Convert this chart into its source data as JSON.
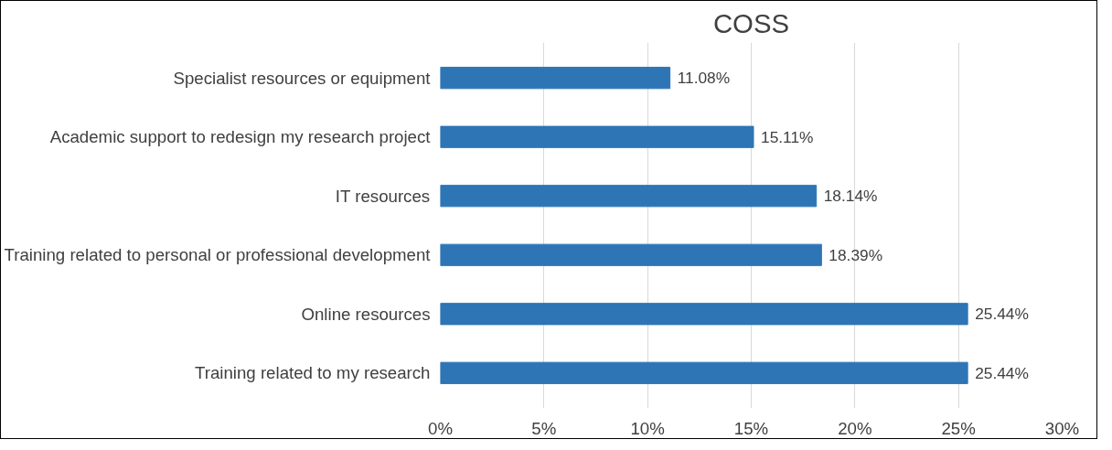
{
  "chart_data": {
    "type": "bar",
    "orientation": "horizontal",
    "title": "COSS",
    "categories": [
      "Specialist resources or equipment",
      "Academic support to redesign my research project",
      "IT resources",
      "Training related to personal or professional development",
      "Online resources",
      "Training related to my research"
    ],
    "values": [
      11.08,
      15.11,
      18.14,
      18.39,
      25.44,
      25.44
    ],
    "value_labels": [
      "11.08%",
      "15.11%",
      "18.14%",
      "18.39%",
      "25.44%",
      "25.44%"
    ],
    "color": "#2e75b6",
    "xlim": [
      0,
      30
    ],
    "xticks": [
      {
        "value": 0,
        "label": "0%"
      },
      {
        "value": 5,
        "label": "5%"
      },
      {
        "value": 10,
        "label": "10%"
      },
      {
        "value": 15,
        "label": "15%"
      },
      {
        "value": 20,
        "label": "20%"
      },
      {
        "value": 25,
        "label": "25%"
      },
      {
        "value": 30,
        "label": "30%"
      }
    ],
    "grid": "x"
  }
}
